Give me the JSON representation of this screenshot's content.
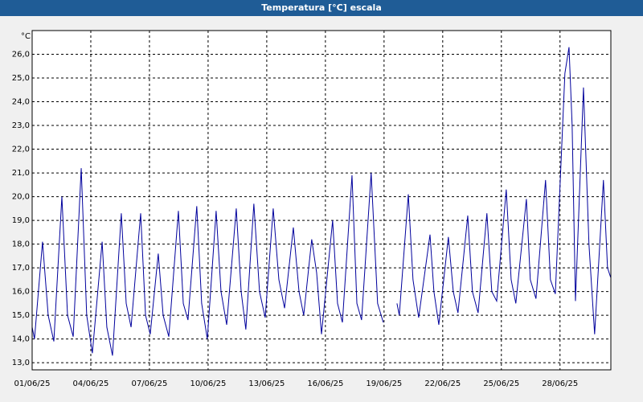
{
  "chart_data": {
    "type": "line",
    "title": "Temperatura [°C] escala",
    "y_unit": "°C",
    "xlim": [
      0,
      29.6
    ],
    "xticks": [
      {
        "value": 0,
        "label": "01/06/25"
      },
      {
        "value": 3,
        "label": "04/06/25"
      },
      {
        "value": 6,
        "label": "07/06/25"
      },
      {
        "value": 9,
        "label": "10/06/25"
      },
      {
        "value": 12,
        "label": "13/06/25"
      },
      {
        "value": 15,
        "label": "16/06/25"
      },
      {
        "value": 18,
        "label": "19/06/25"
      },
      {
        "value": 21,
        "label": "22/06/25"
      },
      {
        "value": 24,
        "label": "25/06/25"
      },
      {
        "value": 27,
        "label": "28/06/25"
      }
    ],
    "ylim": [
      12.7,
      27.0
    ],
    "yticks": [
      {
        "value": 13,
        "label": "13,0"
      },
      {
        "value": 14,
        "label": "14,0"
      },
      {
        "value": 15,
        "label": "15,0"
      },
      {
        "value": 16,
        "label": "16,0"
      },
      {
        "value": 17,
        "label": "17,0"
      },
      {
        "value": 18,
        "label": "18,0"
      },
      {
        "value": 19,
        "label": "19,0"
      },
      {
        "value": 20,
        "label": "20,0"
      },
      {
        "value": 21,
        "label": "21,0"
      },
      {
        "value": 22,
        "label": "22,0"
      },
      {
        "value": 23,
        "label": "23,0"
      },
      {
        "value": 24,
        "label": "24,0"
      },
      {
        "value": 25,
        "label": "25,0"
      },
      {
        "value": 26,
        "label": "26,0"
      }
    ],
    "grid": true,
    "color": "#00009c",
    "x": [
      0,
      0.12,
      0.53,
      0.82,
      1.11,
      1.52,
      1.81,
      2.1,
      2.51,
      2.79,
      3.08,
      3.58,
      3.82,
      4.11,
      4.56,
      4.81,
      5.06,
      5.55,
      5.8,
      6.04,
      6.45,
      6.7,
      6.99,
      7.48,
      7.73,
      7.97,
      8.42,
      8.67,
      8.96,
      9.41,
      9.66,
      9.95,
      10.44,
      10.69,
      10.93,
      11.34,
      11.63,
      11.92,
      12.33,
      12.62,
      12.91,
      13.36,
      13.65,
      13.89,
      14.3,
      14.55,
      14.8,
      15.37,
      15.62,
      15.87,
      16.36,
      16.61,
      16.85,
      17.34,
      17.67,
      17.96,
      18.3,
      18.66,
      18.78,
      19.24,
      19.48,
      19.77,
      20.35,
      20.55,
      20.8,
      21.29,
      21.54,
      21.78,
      22.28,
      22.52,
      22.81,
      23.26,
      23.51,
      23.76,
      24.25,
      24.5,
      24.74,
      25.28,
      25.48,
      25.77,
      26.26,
      26.51,
      26.76,
      27.25,
      27.46,
      27.62,
      27.79,
      28.2,
      28.48,
      28.77,
      29.22,
      29.43,
      29.59
    ],
    "values": [
      14.5,
      14.0,
      18.1,
      15.0,
      13.9,
      20.0,
      15.0,
      14.1,
      21.2,
      15.0,
      13.4,
      18.1,
      14.5,
      13.3,
      19.3,
      15.5,
      14.5,
      19.3,
      15.0,
      14.2,
      17.6,
      15.0,
      14.1,
      19.4,
      15.5,
      14.8,
      19.6,
      15.5,
      14.0,
      19.4,
      16.0,
      14.6,
      19.5,
      16.0,
      14.4,
      19.7,
      16.0,
      14.9,
      19.5,
      16.5,
      15.3,
      18.7,
      16.0,
      15.0,
      18.2,
      16.8,
      14.2,
      19.0,
      15.5,
      14.7,
      20.9,
      15.5,
      14.8,
      21.0,
      15.5,
      14.7,
      null,
      15.5,
      15.0,
      20.1,
      16.5,
      14.9,
      18.4,
      16.0,
      14.6,
      18.3,
      16.0,
      15.1,
      19.2,
      16.0,
      15.1,
      19.3,
      16.0,
      15.6,
      20.3,
      16.5,
      15.5,
      19.9,
      16.5,
      15.7,
      20.7,
      16.5,
      15.9,
      25.2,
      26.3,
      23.0,
      15.6,
      24.6,
      18.0,
      14.2,
      20.7,
      17.0,
      16.6
    ]
  }
}
